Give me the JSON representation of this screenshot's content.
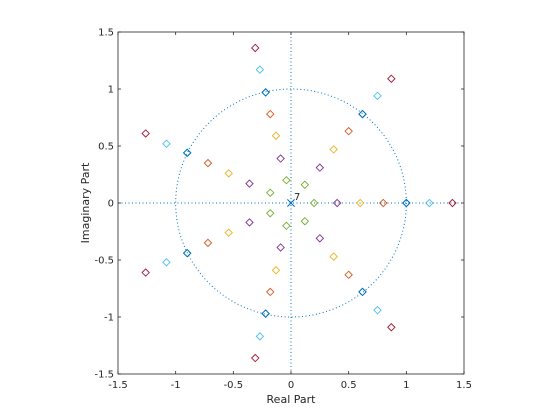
{
  "chart_data": {
    "type": "scatter",
    "title": "",
    "xlabel": "Real Part",
    "ylabel": "Imaginary Part",
    "xlim": [
      -1.5,
      1.5
    ],
    "ylim": [
      -1.5,
      1.5
    ],
    "xticks": [
      -1.5,
      -1,
      -0.5,
      0,
      0.5,
      1,
      1.5
    ],
    "yticks": [
      -1.5,
      -1,
      -0.5,
      0,
      0.5,
      1,
      1.5
    ],
    "xtick_labels": [
      "-1.5",
      "-1",
      "-0.5",
      "0",
      "0.5",
      "1",
      "1.5"
    ],
    "ytick_labels": [
      "-1.5",
      "-1",
      "-0.5",
      "0",
      "0.5",
      "1",
      "1.5"
    ],
    "grid": false,
    "unit_circle": true,
    "pole": {
      "x": 0,
      "y": 0,
      "marker": "x",
      "multiplicity_label": "7"
    },
    "ray_angles_deg": [
      0,
      51.43,
      102.86,
      154.29,
      205.71,
      257.14,
      308.57
    ],
    "series": [
      {
        "color": "#0072BD",
        "radius": 1.0,
        "points": [
          [
            1.0,
            0
          ],
          [
            0.62,
            0.78
          ],
          [
            -0.22,
            0.97
          ],
          [
            -0.9,
            0.44
          ],
          [
            -0.9,
            -0.44
          ],
          [
            -0.22,
            -0.97
          ],
          [
            0.62,
            -0.78
          ]
        ]
      },
      {
        "color": "#0072BD",
        "radius": 1.0,
        "points": [
          [
            1.0,
            0
          ],
          [
            0.62,
            0.78
          ],
          [
            -0.22,
            0.97
          ],
          [
            -0.9,
            0.44
          ],
          [
            -0.9,
            -0.44
          ],
          [
            -0.22,
            -0.97
          ],
          [
            0.62,
            -0.78
          ]
        ]
      },
      {
        "color": "#D95319",
        "radius": 0.8,
        "points": [
          [
            0.8,
            0
          ],
          [
            0.5,
            0.63
          ],
          [
            -0.18,
            0.78
          ],
          [
            -0.72,
            0.35
          ],
          [
            -0.72,
            -0.35
          ],
          [
            -0.18,
            -0.78
          ],
          [
            0.5,
            -0.63
          ]
        ]
      },
      {
        "color": "#EDB120",
        "radius": 0.6,
        "points": [
          [
            0.6,
            0
          ],
          [
            0.37,
            0.47
          ],
          [
            -0.13,
            0.59
          ],
          [
            -0.54,
            0.26
          ],
          [
            -0.54,
            -0.26
          ],
          [
            -0.13,
            -0.59
          ],
          [
            0.37,
            -0.47
          ]
        ]
      },
      {
        "color": "#7E2F8E",
        "radius": 0.4,
        "points": [
          [
            0.4,
            0
          ],
          [
            0.25,
            0.31
          ],
          [
            -0.09,
            0.39
          ],
          [
            -0.36,
            0.17
          ],
          [
            -0.36,
            -0.17
          ],
          [
            -0.09,
            -0.39
          ],
          [
            0.25,
            -0.31
          ]
        ]
      },
      {
        "color": "#77AC30",
        "radius": 0.2,
        "points": [
          [
            0.2,
            0
          ],
          [
            0.12,
            0.16
          ],
          [
            -0.04,
            0.2
          ],
          [
            -0.18,
            0.09
          ],
          [
            -0.18,
            -0.09
          ],
          [
            -0.04,
            -0.2
          ],
          [
            0.12,
            -0.16
          ]
        ]
      },
      {
        "color": "#4DBEEE",
        "radius": 1.2,
        "points": [
          [
            1.2,
            0
          ],
          [
            0.75,
            0.94
          ],
          [
            -0.27,
            1.17
          ],
          [
            -1.08,
            0.52
          ],
          [
            -1.08,
            -0.52
          ],
          [
            -0.27,
            -1.17
          ],
          [
            0.75,
            -0.94
          ]
        ]
      },
      {
        "color": "#A2142F",
        "radius": 1.4,
        "points": [
          [
            1.4,
            0
          ],
          [
            0.87,
            1.09
          ],
          [
            -0.31,
            1.36
          ],
          [
            -1.26,
            0.61
          ],
          [
            -1.26,
            -0.61
          ],
          [
            -0.31,
            -1.36
          ],
          [
            0.87,
            -1.09
          ]
        ]
      }
    ],
    "colors": {
      "axis": "#262626",
      "guide": "#0072BD",
      "background": "#ffffff"
    }
  }
}
